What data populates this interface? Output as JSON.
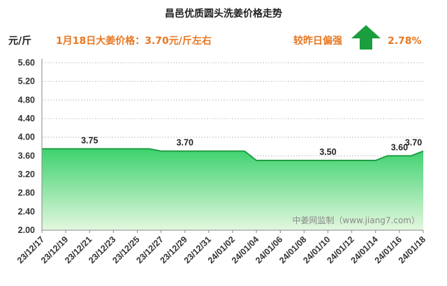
{
  "header": {
    "title": "昌邑优质圆头洗姜价格走势",
    "unit": "元/斤",
    "price_note": "1月18日大姜价格：3.70元/斤左右",
    "compare_label": "较昨日偏强",
    "change_pct": "2.78%"
  },
  "watermark": "中姜网监制（www.jiang7.com）",
  "colors": {
    "area_top": "#3dd26e",
    "area_bottom": "#e4f7df",
    "line": "#1f9e45",
    "arrow": "#1a9e3e",
    "accent": "#e87722"
  },
  "chart_data": {
    "type": "area",
    "title": "昌邑优质圆头洗姜价格走势",
    "ylabel": "元/斤",
    "ylim": [
      2.0,
      5.6
    ],
    "yticks": [
      "2.00",
      "2.40",
      "2.80",
      "3.20",
      "3.60",
      "4.00",
      "4.40",
      "4.80",
      "5.20",
      "5.60"
    ],
    "grid": true,
    "x": [
      "23/12/17",
      "23/12/18",
      "23/12/19",
      "23/12/20",
      "23/12/21",
      "23/12/22",
      "23/12/23",
      "23/12/24",
      "23/12/25",
      "23/12/26",
      "23/12/27",
      "23/12/28",
      "23/12/29",
      "23/12/30",
      "23/12/31",
      "24/01/01",
      "24/01/02",
      "24/01/03",
      "24/01/04",
      "24/01/05",
      "24/01/06",
      "24/01/07",
      "24/01/08",
      "24/01/09",
      "24/01/10",
      "24/01/11",
      "24/01/12",
      "24/01/13",
      "24/01/14",
      "24/01/15",
      "24/01/16",
      "24/01/17",
      "24/01/18"
    ],
    "xtick_labels": [
      "23/12/17",
      "23/12/19",
      "23/12/21",
      "23/12/23",
      "23/12/25",
      "23/12/27",
      "23/12/29",
      "23/12/31",
      "24/01/02",
      "24/01/04",
      "24/01/06",
      "24/01/08",
      "24/01/10",
      "24/01/12",
      "24/01/14",
      "24/01/16",
      "24/01/18"
    ],
    "values": [
      3.75,
      3.75,
      3.75,
      3.75,
      3.75,
      3.75,
      3.75,
      3.75,
      3.75,
      3.75,
      3.7,
      3.7,
      3.7,
      3.7,
      3.7,
      3.7,
      3.7,
      3.7,
      3.5,
      3.5,
      3.5,
      3.5,
      3.5,
      3.5,
      3.5,
      3.5,
      3.5,
      3.5,
      3.5,
      3.6,
      3.6,
      3.6,
      3.7
    ],
    "data_labels": [
      {
        "x": "23/12/21",
        "text": "3.75"
      },
      {
        "x": "23/12/29",
        "text": "3.70"
      },
      {
        "x": "24/01/10",
        "text": "3.50"
      },
      {
        "x": "24/01/16",
        "text": "3.60"
      },
      {
        "x": "24/01/18",
        "text": "3.70"
      }
    ]
  }
}
